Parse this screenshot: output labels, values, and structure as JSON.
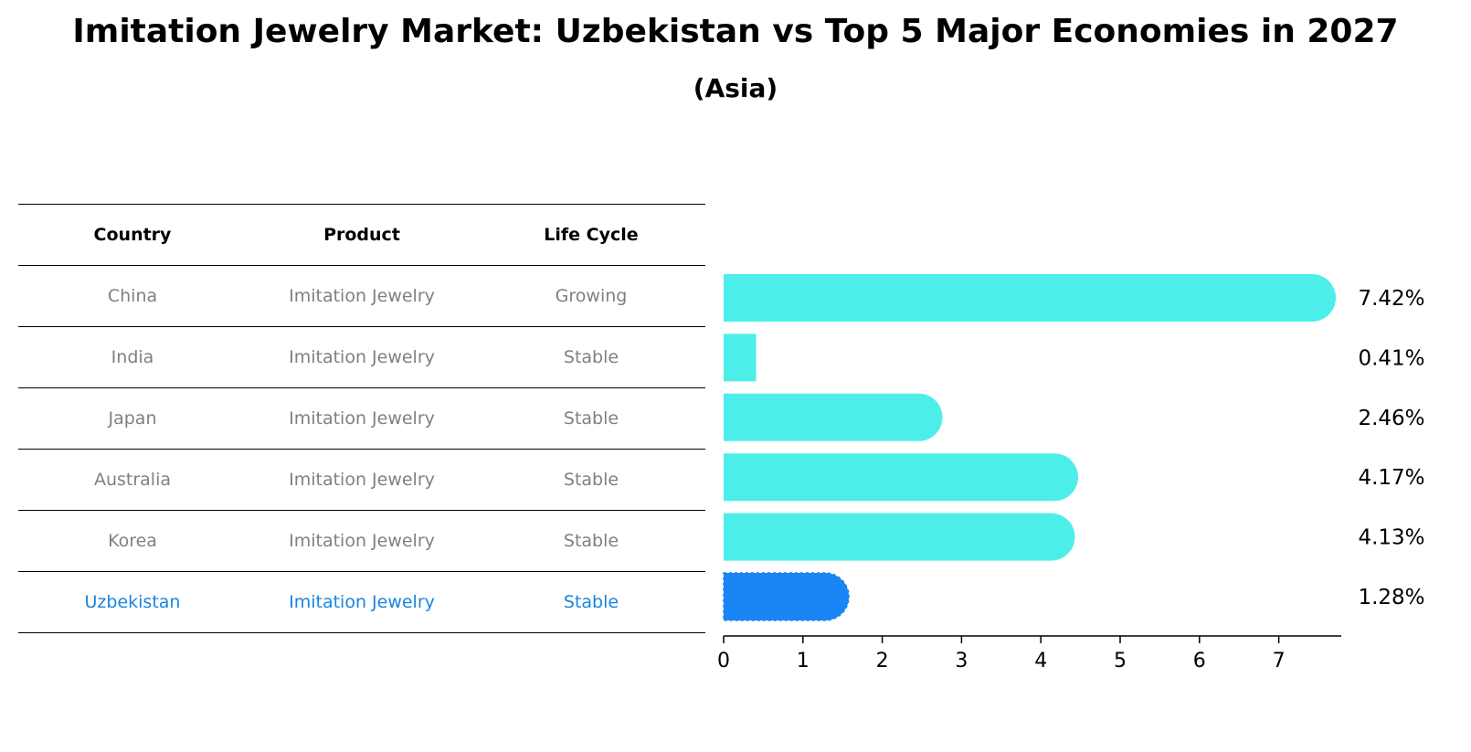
{
  "title": "Imitation Jewelry Market: Uzbekistan vs Top 5 Major Economies in 2027",
  "subtitle": "(Asia)",
  "table": {
    "headers": [
      "Country",
      "Product",
      "Life Cycle"
    ],
    "rows": [
      {
        "country": "China",
        "product": "Imitation Jewelry",
        "life_cycle": "Growing"
      },
      {
        "country": "India",
        "product": "Imitation Jewelry",
        "life_cycle": "Stable"
      },
      {
        "country": "Japan",
        "product": "Imitation Jewelry",
        "life_cycle": "Stable"
      },
      {
        "country": "Australia",
        "product": "Imitation Jewelry",
        "life_cycle": "Stable"
      },
      {
        "country": "Korea",
        "product": "Imitation Jewelry",
        "life_cycle": "Stable"
      },
      {
        "country": "Uzbekistan",
        "product": "Imitation Jewelry",
        "life_cycle": "Stable"
      }
    ]
  },
  "colors": {
    "bar": "#4deeea",
    "highlight_bar": "#1a85f5",
    "highlight_text": "#1a85de",
    "muted_text": "#808080"
  },
  "chart_data": {
    "type": "bar",
    "orientation": "horizontal",
    "categories": [
      "China",
      "India",
      "Japan",
      "Australia",
      "Korea",
      "Uzbekistan"
    ],
    "values": [
      7.42,
      0.41,
      2.46,
      4.17,
      4.13,
      1.28
    ],
    "value_labels": [
      "7.42%",
      "0.41%",
      "2.46%",
      "4.17%",
      "4.13%",
      "1.28%"
    ],
    "highlight": "Uzbekistan",
    "xlim": [
      0,
      7.8
    ],
    "xticks": [
      0,
      1,
      2,
      3,
      4,
      5,
      6,
      7
    ],
    "grid": false,
    "legend": "none"
  }
}
